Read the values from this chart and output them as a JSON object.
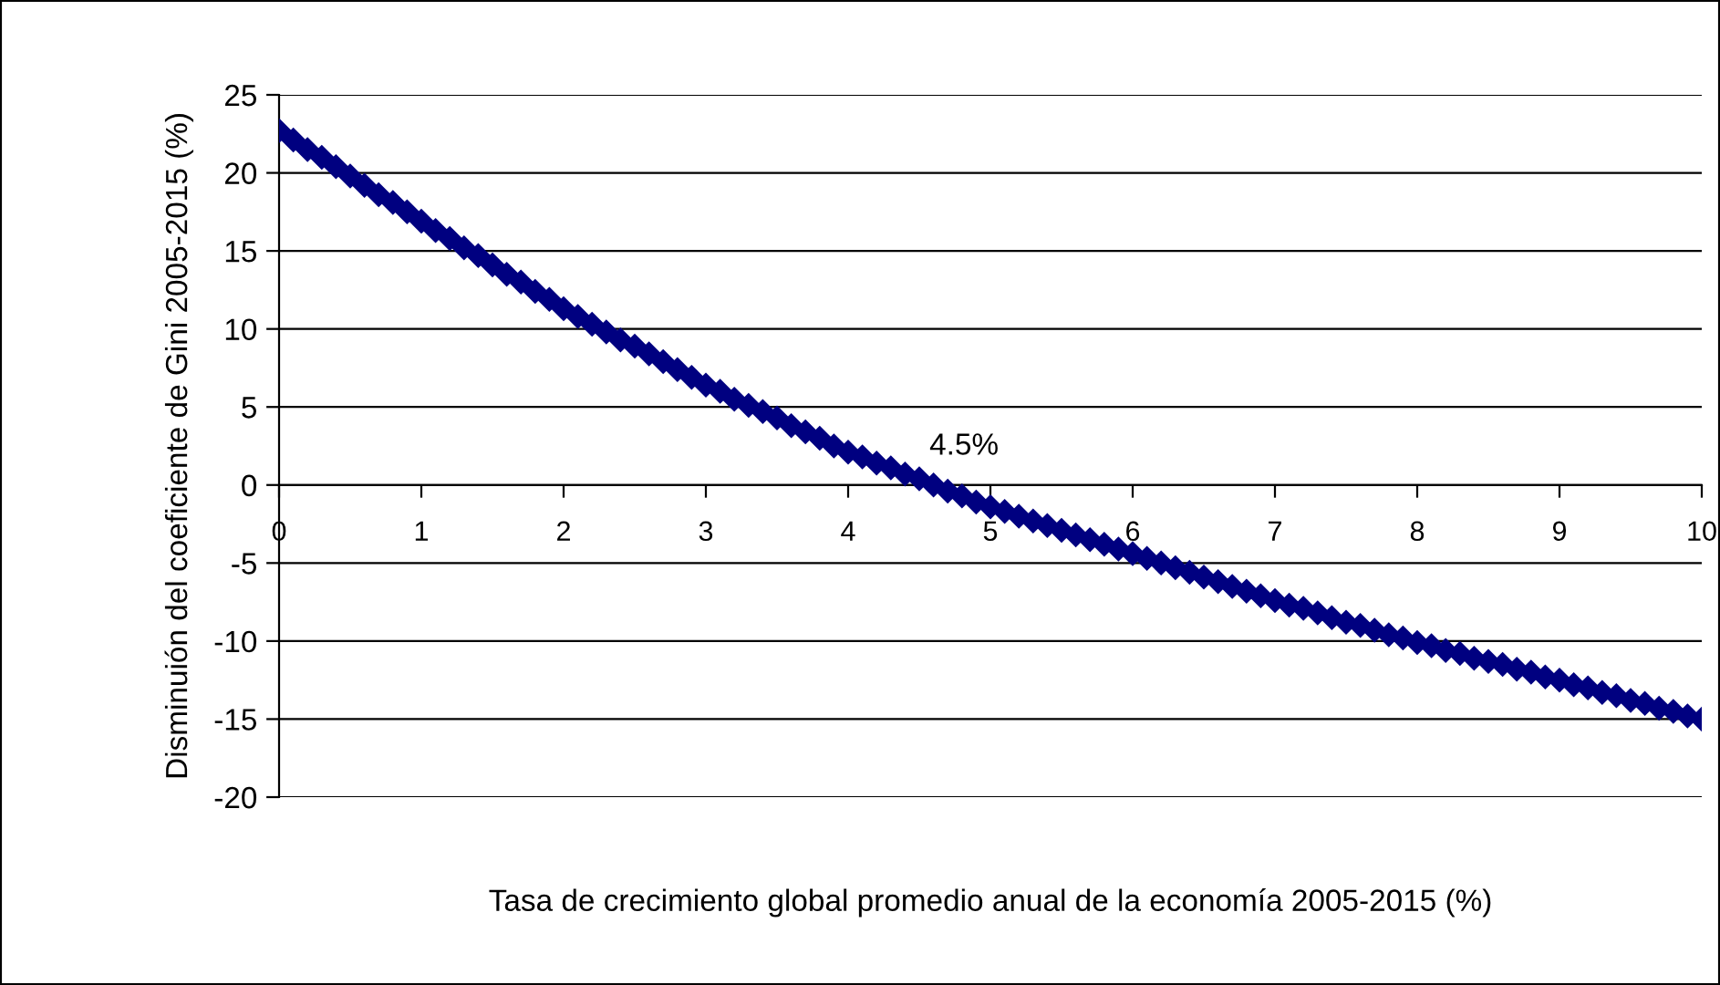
{
  "chart_data": {
    "type": "scatter",
    "xlabel": "Tasa de crecimiento global promedio anual de la economía 2005-2015 (%)",
    "ylabel": "Disminuión del coeficiente de Gini 2005-2015 (%)",
    "annotations": [
      {
        "text": "4.5%",
        "x": 4.5,
        "y": 0
      }
    ],
    "series": [
      {
        "color": "#000080",
        "x": [
          0,
          0.1,
          0.2,
          0.3,
          0.4,
          0.5,
          0.6,
          0.7,
          0.8,
          0.9,
          1,
          1.1,
          1.2,
          1.3,
          1.4,
          1.5,
          1.6,
          1.7,
          1.8,
          1.9,
          2,
          2.1,
          2.2,
          2.3,
          2.4,
          2.5,
          2.6,
          2.7,
          2.8,
          2.9,
          3,
          3.1,
          3.2,
          3.3,
          3.4,
          3.5,
          3.6,
          3.7,
          3.8,
          3.9,
          4,
          4.1,
          4.2,
          4.3,
          4.4,
          4.5,
          4.6,
          4.7,
          4.8,
          4.9,
          5,
          5.1,
          5.2,
          5.3,
          5.4,
          5.5,
          5.6,
          5.7,
          5.8,
          5.9,
          6,
          6.1,
          6.2,
          6.3,
          6.4,
          6.5,
          6.6,
          6.7,
          6.8,
          6.9,
          7,
          7.1,
          7.2,
          7.3,
          7.4,
          7.5,
          7.6,
          7.7,
          7.8,
          7.9,
          8,
          8.1,
          8.2,
          8.3,
          8.4,
          8.5,
          8.6,
          8.7,
          8.8,
          8.9,
          9,
          9.1,
          9.2,
          9.3,
          9.4,
          9.5,
          9.6,
          9.7,
          9.8,
          9.9,
          10
        ],
        "values": [
          22.7,
          22.1,
          21.5,
          21.0,
          20.4,
          19.8,
          19.2,
          18.6,
          18.1,
          17.5,
          16.9,
          16.3,
          15.8,
          15.2,
          14.7,
          14.1,
          13.5,
          13.0,
          12.4,
          11.9,
          11.3,
          10.8,
          10.3,
          9.8,
          9.3,
          8.9,
          8.4,
          7.9,
          7.4,
          6.9,
          6.4,
          6.0,
          5.5,
          5.1,
          4.7,
          4.3,
          3.8,
          3.4,
          3.0,
          2.5,
          2.1,
          1.8,
          1.4,
          1.1,
          0.7,
          0.4,
          0.0,
          -0.4,
          -0.7,
          -1.1,
          -1.4,
          -1.7,
          -2.0,
          -2.3,
          -2.6,
          -2.9,
          -3.2,
          -3.5,
          -3.8,
          -4.1,
          -4.4,
          -4.7,
          -5.0,
          -5.3,
          -5.6,
          -5.9,
          -6.2,
          -6.5,
          -6.8,
          -7.1,
          -7.4,
          -7.7,
          -7.9,
          -8.2,
          -8.5,
          -8.8,
          -9.0,
          -9.3,
          -9.6,
          -9.8,
          -10.1,
          -10.3,
          -10.6,
          -10.8,
          -11.1,
          -11.3,
          -11.5,
          -11.8,
          -12.0,
          -12.3,
          -12.5,
          -12.8,
          -13.0,
          -13.3,
          -13.5,
          -13.8,
          -14.0,
          -14.3,
          -14.5,
          -14.8,
          -15.0
        ]
      }
    ],
    "xlim": [
      0,
      10
    ],
    "xticks": [
      0,
      1,
      2,
      3,
      4,
      5,
      6,
      7,
      8,
      9,
      10
    ],
    "ylim": [
      -20,
      25
    ],
    "yticks": [
      -20,
      -15,
      -10,
      -5,
      0,
      5,
      10,
      15,
      20,
      25
    ],
    "grid": "y",
    "marker": "diamond",
    "legend": false
  }
}
